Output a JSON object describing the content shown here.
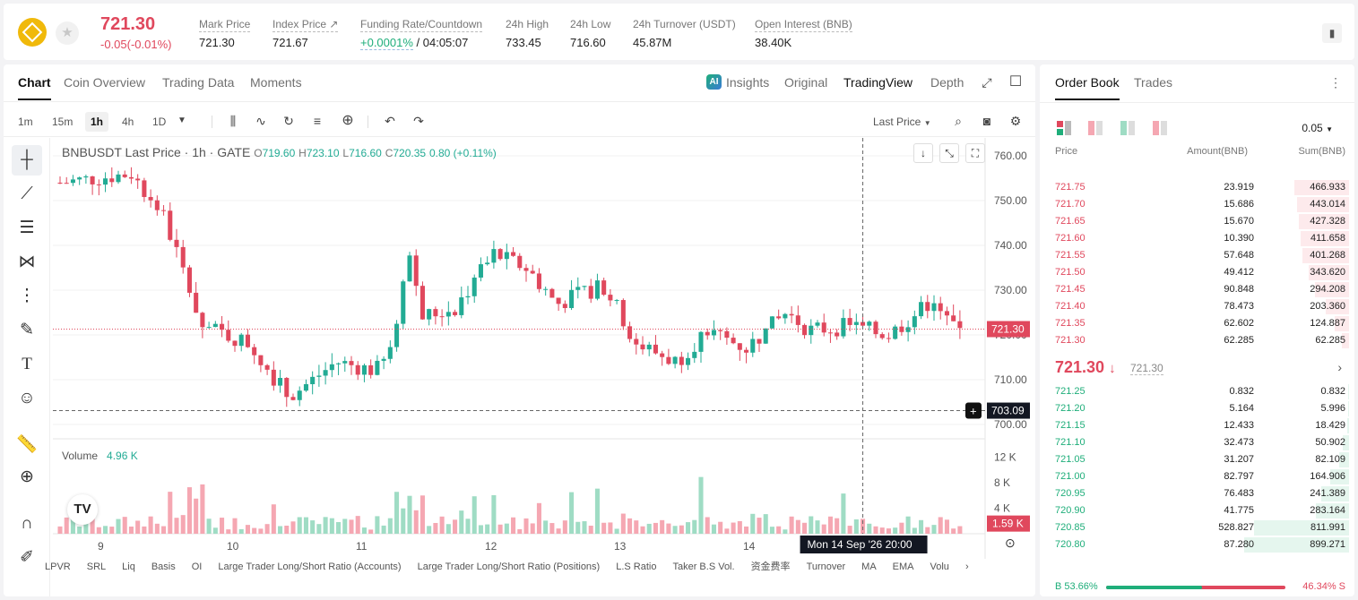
{
  "header": {
    "last_price": "721.30",
    "change": "-0.05(-0.01%)",
    "stats": [
      {
        "label": "Mark Price",
        "value": "721.30"
      },
      {
        "label": "Index Price ↗",
        "value": "721.67"
      },
      {
        "label": "Funding Rate/Countdown",
        "value_green": "+0.0001%",
        "value": " / 04:05:07"
      },
      {
        "label": "24h High",
        "value": "733.45"
      },
      {
        "label": "24h Low",
        "value": "716.60"
      },
      {
        "label": "24h Turnover (USDT)",
        "value": "45.87M"
      },
      {
        "label": "Open Interest (BNB)",
        "value": "38.40K"
      }
    ]
  },
  "chart_tabs": [
    "Chart",
    "Coin Overview",
    "Trading Data",
    "Moments"
  ],
  "view_tabs": {
    "insights": "Insights",
    "original": "Original",
    "tradingview": "TradingView",
    "depth": "Depth"
  },
  "timeframes": [
    "1m",
    "15m",
    "1h",
    "4h",
    "1D"
  ],
  "price_type": "Last Price",
  "legend": {
    "symbol": "BNBUSDT Last Price · 1h · GATE",
    "o": "719.60",
    "h": "723.10",
    "l": "716.60",
    "c": "720.35",
    "change": "0.80 (+0.11%)"
  },
  "volume_legend": {
    "label": "Volume",
    "value": "4.96 K"
  },
  "indicators": [
    "LPVR",
    "SRL",
    "Liq",
    "Basis",
    "OI",
    "Large Trader Long/Short Ratio (Accounts)",
    "Large Trader Long/Short Ratio (Positions)",
    "L.S Ratio",
    "Taker B.S Vol.",
    "资金费率",
    "Turnover",
    "MA",
    "EMA",
    "Volu"
  ],
  "crosshair": {
    "date_label": "Mon 14 Sep '26",
    "time_label": "20:00",
    "price_label": "703.09"
  },
  "colors": {
    "up": "#22ab94",
    "down": "#e0485d",
    "up_vol": "#9fdcc4",
    "down_vol": "#f5a7b2"
  },
  "chart_data": {
    "type": "candlestick",
    "x_ticks": [
      "9",
      "10",
      "11",
      "12",
      "13",
      "14"
    ],
    "y_ticks": [
      700,
      710,
      720,
      730,
      740,
      750,
      760
    ],
    "y_tick_labels": [
      "700.00",
      "710.00",
      "720.00",
      "730.00",
      "740.00",
      "750.00",
      "760.00"
    ],
    "ylim": [
      700,
      762
    ],
    "last_price_label": "721.30",
    "volume": {
      "y_ticks": [
        "12 K",
        "8 K",
        "4 K"
      ],
      "ylim": [
        0,
        14
      ],
      "last_label": "1.59 K"
    },
    "candle_count": 140
  },
  "order_book": {
    "tabs": [
      "Order Book",
      "Trades"
    ],
    "precision": "0.05",
    "headers": {
      "price": "Price",
      "amount": "Amount(BNB)",
      "sum": "Sum(BNB)"
    },
    "asks": [
      {
        "price": "721.75",
        "amount": "23.919",
        "sum": "466.933",
        "depth": 0.519
      },
      {
        "price": "721.70",
        "amount": "15.686",
        "sum": "443.014",
        "depth": 0.493
      },
      {
        "price": "721.65",
        "amount": "15.670",
        "sum": "427.328",
        "depth": 0.475
      },
      {
        "price": "721.60",
        "amount": "10.390",
        "sum": "411.658",
        "depth": 0.458
      },
      {
        "price": "721.55",
        "amount": "57.648",
        "sum": "401.268",
        "depth": 0.446
      },
      {
        "price": "721.50",
        "amount": "49.412",
        "sum": "343.620",
        "depth": 0.382
      },
      {
        "price": "721.45",
        "amount": "90.848",
        "sum": "294.208",
        "depth": 0.327
      },
      {
        "price": "721.40",
        "amount": "78.473",
        "sum": "203.360",
        "depth": 0.226
      },
      {
        "price": "721.35",
        "amount": "62.602",
        "sum": "124.887",
        "depth": 0.139
      },
      {
        "price": "721.30",
        "amount": "62.285",
        "sum": "62.285",
        "depth": 0.069
      }
    ],
    "mid": {
      "price": "721.30",
      "arrow": "↓",
      "mark": "721.30"
    },
    "bids": [
      {
        "price": "721.25",
        "amount": "0.832",
        "sum": "0.832",
        "depth": 0.001
      },
      {
        "price": "721.20",
        "amount": "5.164",
        "sum": "5.996",
        "depth": 0.007
      },
      {
        "price": "721.15",
        "amount": "12.433",
        "sum": "18.429",
        "depth": 0.02
      },
      {
        "price": "721.10",
        "amount": "32.473",
        "sum": "50.902",
        "depth": 0.057
      },
      {
        "price": "721.05",
        "amount": "31.207",
        "sum": "82.109",
        "depth": 0.091
      },
      {
        "price": "721.00",
        "amount": "82.797",
        "sum": "164.906",
        "depth": 0.183
      },
      {
        "price": "720.95",
        "amount": "76.483",
        "sum": "241.389",
        "depth": 0.268
      },
      {
        "price": "720.90",
        "amount": "41.775",
        "sum": "283.164",
        "depth": 0.315
      },
      {
        "price": "720.85",
        "amount": "528.827",
        "sum": "811.991",
        "depth": 0.903
      },
      {
        "price": "720.80",
        "amount": "87.280",
        "sum": "899.271",
        "depth": 1.0
      }
    ],
    "buy_ratio": "B 53.66%",
    "sell_ratio": "46.34% S",
    "buy_fraction": 0.5366
  }
}
